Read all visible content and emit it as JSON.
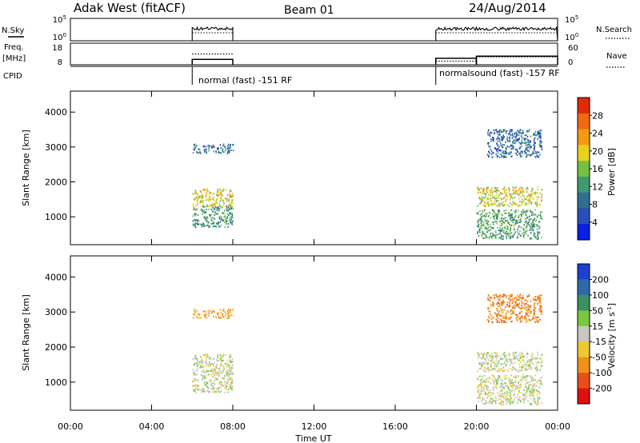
{
  "header": {
    "station": "Adak West (fitACF)",
    "beam": "Beam 01",
    "date": "24/Aug/2014"
  },
  "chart_data": {
    "type": "heatmap",
    "time_ticks": [
      "00:00",
      "04:00",
      "08:00",
      "12:00",
      "16:00",
      "20:00",
      "00:00"
    ],
    "time_tick_hours": [
      0,
      4,
      8,
      12,
      16,
      20,
      24
    ],
    "xlabel": "Time UT",
    "xlim": [
      0,
      24
    ],
    "status_panels": {
      "nsky_label": "N.Sky",
      "nsearch_label": "N.Search",
      "nsky_ticks": [
        "10^5",
        "10^0"
      ],
      "nsearch_ticks": [
        "10^5",
        "10^0"
      ],
      "freq_label": "Freq.",
      "freq_unit": "[MHz]",
      "freq_ticks": [
        "18",
        "8"
      ],
      "nave_label": "Nave",
      "nave_ticks": [
        "60",
        "0"
      ],
      "cpid_label": "CPID",
      "cpid_segments": [
        {
          "label": "normal (fast) -151 RF",
          "start": 6.0,
          "end": 8.0
        },
        {
          "label": "normalsound (fast) -157 RF",
          "start": 18.0,
          "end": 24.0
        }
      ],
      "freq_segments": [
        {
          "start": 6.0,
          "end": 8.0,
          "mhz": 10.5
        },
        {
          "start": 18.0,
          "end": 20.0,
          "mhz": 11.0
        },
        {
          "start": 20.0,
          "end": 24.0,
          "mhz": 12.0
        }
      ],
      "nave_segments": [
        {
          "start": 6.0,
          "end": 8.0,
          "value": 30
        },
        {
          "start": 18.0,
          "end": 20.0,
          "value": 10
        },
        {
          "start": 20.0,
          "end": 24.0,
          "value": 22
        }
      ]
    },
    "ylabel": "Slant Range [km]",
    "ylim": [
      200,
      4600
    ],
    "range_ticks": [
      1000,
      2000,
      3000,
      4000
    ],
    "power_panel": {
      "colorbar_label": "Power [dB]",
      "colorbar_ticks": [
        "4",
        "8",
        "12",
        "16",
        "20",
        "24",
        "28"
      ],
      "scale": [
        0,
        32
      ],
      "colors": [
        "#0a1ee6",
        "#2a4fb8",
        "#2f6f8f",
        "#3f9a72",
        "#74c043",
        "#e8d21a",
        "#f39a12",
        "#f06a12",
        "#e02a0a"
      ]
    },
    "velocity_panel": {
      "colorbar_label": "Velocity [m s^-1]",
      "colorbar_ticks": [
        "200",
        "100",
        "50",
        "15",
        "-15",
        "-50",
        "-100",
        "-200"
      ],
      "colors": [
        "#1e3fd0",
        "#2f6aa8",
        "#3c8f60",
        "#78c840",
        "#c8c8c0",
        "#f0c830",
        "#f0901a",
        "#e8501a",
        "#e01010"
      ]
    },
    "echo_regions": [
      {
        "t0": 6.0,
        "t1": 8.0,
        "r0": 2820,
        "r1": 3080,
        "power": 9,
        "velocity": -40
      },
      {
        "t0": 6.0,
        "t1": 8.0,
        "r0": 1300,
        "r1": 1800,
        "power": 20,
        "velocity": 0
      },
      {
        "t0": 6.0,
        "t1": 8.0,
        "r0": 700,
        "r1": 1300,
        "power": 12,
        "velocity": 0
      },
      {
        "t0": 20.0,
        "t1": 23.2,
        "r0": 1300,
        "r1": 1850,
        "power": 19,
        "velocity": 0
      },
      {
        "t0": 20.0,
        "t1": 23.2,
        "r0": 350,
        "r1": 1200,
        "power": 13,
        "velocity": 0
      },
      {
        "t0": 20.5,
        "t1": 23.2,
        "r0": 2700,
        "r1": 3500,
        "power": 8,
        "velocity": -60
      }
    ]
  }
}
